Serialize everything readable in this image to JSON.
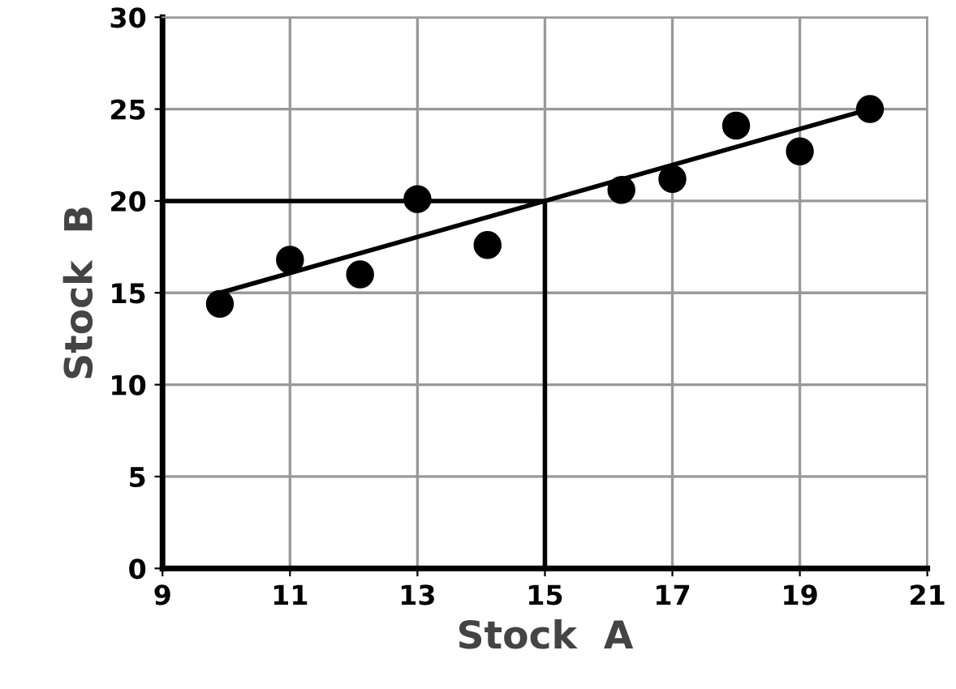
{
  "chart_data": {
    "type": "scatter",
    "xlabel": "Stock  A",
    "ylabel": "Stock  B",
    "xlim": [
      9,
      21
    ],
    "xticks": [
      9,
      11,
      13,
      15,
      17,
      19,
      21
    ],
    "ylim": [
      0,
      30
    ],
    "yticks": [
      0,
      5,
      10,
      15,
      20,
      25,
      30
    ],
    "grid": true,
    "marker": "circle",
    "series": [
      {
        "color": "#000000",
        "x": [
          9.9,
          11,
          12.1,
          13,
          14.1,
          16.2,
          17,
          18,
          19,
          20.1
        ],
        "values": [
          14.4,
          16.8,
          16.0,
          20.1,
          17.6,
          20.6,
          21.2,
          24.1,
          22.7,
          25
        ]
      },
      {
        "type": "line",
        "color": "#000000",
        "marker": "none",
        "x": [
          9.9,
          20.1
        ],
        "values": [
          15,
          25
        ]
      },
      {
        "type": "line",
        "color": "#000000",
        "marker": "none",
        "x": [
          9,
          15,
          15
        ],
        "values": [
          20,
          20,
          0
        ]
      }
    ]
  }
}
